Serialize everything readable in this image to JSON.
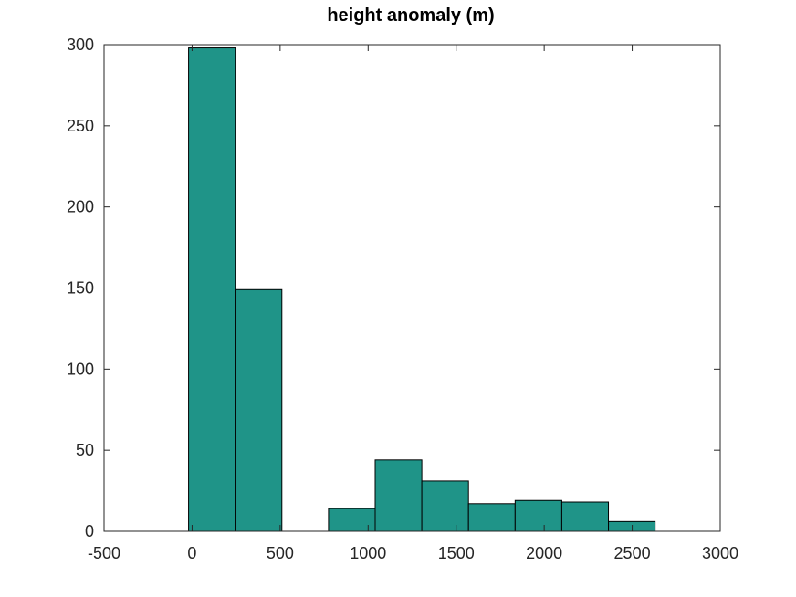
{
  "chart_data": {
    "type": "bar",
    "title": "height anomaly (m)",
    "xlabel": "",
    "ylabel": "",
    "xlim": [
      -500,
      3000
    ],
    "ylim": [
      0,
      300
    ],
    "xticks": [
      -500,
      0,
      500,
      1000,
      1500,
      2000,
      2500,
      3000
    ],
    "xtick_labels": [
      "-500",
      "0",
      "500",
      "1000",
      "1500",
      "2000",
      "2500",
      "3000"
    ],
    "yticks": [
      0,
      50,
      100,
      150,
      200,
      250,
      300
    ],
    "ytick_labels": [
      "0",
      "50",
      "100",
      "150",
      "200",
      "250",
      "300"
    ],
    "bins": [
      {
        "x0": -20,
        "x1": 245,
        "count": 298
      },
      {
        "x0": 245,
        "x1": 510,
        "count": 149
      },
      {
        "x0": 510,
        "x1": 775,
        "count": 0
      },
      {
        "x0": 775,
        "x1": 1040,
        "count": 14
      },
      {
        "x0": 1040,
        "x1": 1305,
        "count": 44
      },
      {
        "x0": 1305,
        "x1": 1570,
        "count": 31
      },
      {
        "x0": 1570,
        "x1": 1835,
        "count": 17
      },
      {
        "x0": 1835,
        "x1": 2100,
        "count": 19
      },
      {
        "x0": 2100,
        "x1": 2365,
        "count": 18
      },
      {
        "x0": 2365,
        "x1": 2630,
        "count": 6
      }
    ],
    "bar_color": "#1f9488",
    "edge_color": "#000000",
    "grid": false,
    "box": true
  }
}
